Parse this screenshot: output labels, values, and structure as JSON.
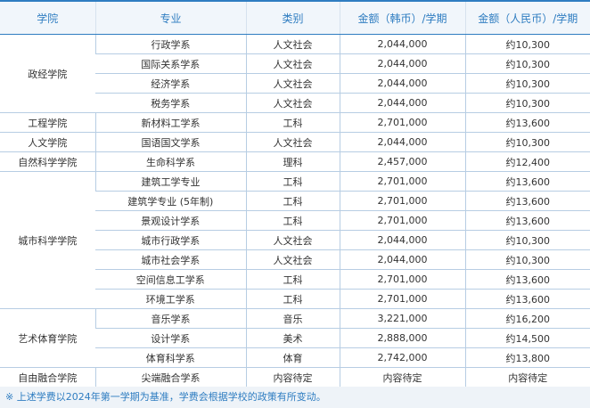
{
  "headers": [
    "学院",
    "专业",
    "类别",
    "金额（韩币）/学期",
    "金额（人民币）/学期"
  ],
  "groups": [
    {
      "college": "政经学院",
      "rows": [
        {
          "major": "行政学系",
          "category": "人文社会",
          "krw": "2,044,000",
          "cny": "约10,300"
        },
        {
          "major": "国际关系学系",
          "category": "人文社会",
          "krw": "2,044,000",
          "cny": "约10,300"
        },
        {
          "major": "经济学系",
          "category": "人文社会",
          "krw": "2,044,000",
          "cny": "约10,300"
        },
        {
          "major": "税务学系",
          "category": "人文社会",
          "krw": "2,044,000",
          "cny": "约10,300"
        }
      ]
    },
    {
      "college": "工程学院",
      "rows": [
        {
          "major": "新材料工学系",
          "category": "工科",
          "krw": "2,701,000",
          "cny": "约13,600"
        }
      ]
    },
    {
      "college": "人文学院",
      "rows": [
        {
          "major": "国语国文学系",
          "category": "人文社会",
          "krw": "2,044,000",
          "cny": "约10,300"
        }
      ]
    },
    {
      "college": "自然科学学院",
      "rows": [
        {
          "major": "生命科学系",
          "category": "理科",
          "krw": "2,457,000",
          "cny": "约12,400"
        }
      ]
    },
    {
      "college": "城市科学学院",
      "rows": [
        {
          "major": "建筑工学专业",
          "category": "工科",
          "krw": "2,701,000",
          "cny": "约13,600"
        },
        {
          "major": "建筑学专业 (5年制)",
          "category": "工科",
          "krw": "2,701,000",
          "cny": "约13,600"
        },
        {
          "major": "景观设计学系",
          "category": "工科",
          "krw": "2,701,000",
          "cny": "约13,600"
        },
        {
          "major": "城市行政学系",
          "category": "人文社会",
          "krw": "2,044,000",
          "cny": "约10,300"
        },
        {
          "major": "城市社会学系",
          "category": "人文社会",
          "krw": "2,044,000",
          "cny": "约10,300"
        },
        {
          "major": "空间信息工学系",
          "category": "工科",
          "krw": "2,701,000",
          "cny": "约13,600"
        },
        {
          "major": "环境工学系",
          "category": "工科",
          "krw": "2,701,000",
          "cny": "约13,600"
        }
      ]
    },
    {
      "college": "艺术体育学院",
      "rows": [
        {
          "major": "音乐学系",
          "category": "音乐",
          "krw": "3,221,000",
          "cny": "约16,200"
        },
        {
          "major": "设计学系",
          "category": "美术",
          "krw": "2,888,000",
          "cny": "约14,500"
        },
        {
          "major": "体育科学系",
          "category": "体育",
          "krw": "2,742,000",
          "cny": "约13,800"
        }
      ]
    },
    {
      "college": "自由融合学院",
      "rows": [
        {
          "major": "尖端融合学系",
          "category": "内容待定",
          "krw": "内容待定",
          "cny": "内容待定"
        }
      ]
    }
  ],
  "note": "※ 上述学费以2024年第一学期为基准，学费会根据学校的政策有所变动。"
}
